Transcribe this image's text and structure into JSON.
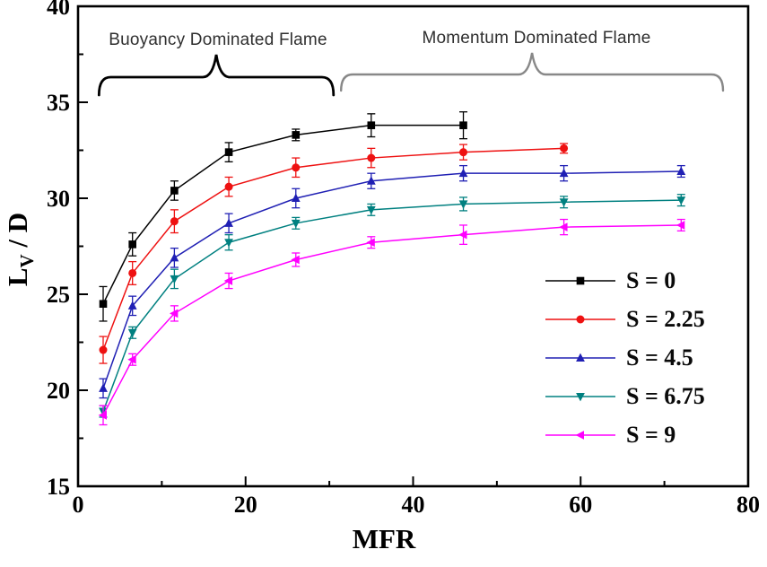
{
  "chart_data": {
    "type": "line",
    "title": "",
    "xlabel": "MFR",
    "ylabel": "L_V / D",
    "ylabel_parts": {
      "main": "L",
      "sub": "V",
      "rest": " / D"
    },
    "xlim": [
      0,
      80
    ],
    "ylim": [
      15,
      40
    ],
    "x_major_ticks": [
      0,
      20,
      40,
      60,
      80
    ],
    "x_minor_ticks": [
      10,
      30,
      50,
      70
    ],
    "y_major_ticks": [
      15,
      20,
      25,
      30,
      35,
      40
    ],
    "y_minor_ticks": [
      17.5,
      22.5,
      27.5,
      32.5,
      37.5
    ],
    "grid": false,
    "frame": "box",
    "frame_color": "#000000",
    "legend_position": "lower right",
    "series": [
      {
        "name": "S = 0",
        "color": "#000000",
        "marker": "square",
        "x": [
          3,
          6.5,
          11.5,
          18,
          26,
          35,
          46
        ],
        "y": [
          24.5,
          27.6,
          30.4,
          32.4,
          33.3,
          33.8,
          33.8
        ],
        "yerr": [
          0.9,
          0.6,
          0.5,
          0.5,
          0.3,
          0.6,
          0.7
        ]
      },
      {
        "name": "S = 2.25",
        "color": "#ee1111",
        "marker": "circle",
        "x": [
          3,
          6.5,
          11.5,
          18,
          26,
          35,
          46,
          58
        ],
        "y": [
          22.1,
          26.1,
          28.8,
          30.6,
          31.6,
          32.1,
          32.4,
          32.6
        ],
        "yerr": [
          0.7,
          0.6,
          0.6,
          0.5,
          0.5,
          0.5,
          0.4,
          0.25
        ]
      },
      {
        "name": "S = 4.5",
        "color": "#2020b4",
        "marker": "triangle-up",
        "x": [
          3,
          6.5,
          11.5,
          18,
          26,
          35,
          46,
          58,
          72
        ],
        "y": [
          20.1,
          24.4,
          26.9,
          28.7,
          30.0,
          30.9,
          31.3,
          31.3,
          31.4
        ],
        "yerr": [
          0.5,
          0.5,
          0.5,
          0.5,
          0.5,
          0.4,
          0.4,
          0.4,
          0.3
        ]
      },
      {
        "name": "S = 6.75",
        "color": "#008080",
        "marker": "triangle-down",
        "x": [
          3,
          6.5,
          11.5,
          18,
          26,
          35,
          46,
          58,
          72
        ],
        "y": [
          18.9,
          23.0,
          25.8,
          27.7,
          28.7,
          29.4,
          29.7,
          29.8,
          29.9
        ],
        "yerr": [
          0.3,
          0.3,
          0.5,
          0.4,
          0.3,
          0.3,
          0.35,
          0.3,
          0.3
        ]
      },
      {
        "name": "S = 9",
        "color": "#ff00ff",
        "marker": "triangle-left",
        "x": [
          3,
          6.5,
          11.5,
          18,
          26,
          35,
          46,
          58,
          72
        ],
        "y": [
          18.7,
          21.6,
          24.0,
          25.7,
          26.8,
          27.7,
          28.1,
          28.5,
          28.6
        ],
        "yerr": [
          0.5,
          0.3,
          0.4,
          0.4,
          0.35,
          0.3,
          0.5,
          0.4,
          0.3
        ]
      }
    ],
    "annotations": [
      {
        "text": "Buoyancy Dominated Flame",
        "brace_color": "#000000",
        "x_from": 2.5,
        "x_to": 30.5
      },
      {
        "text": "Momentum Dominated Flame",
        "brace_color": "#888888",
        "x_from": 31.4,
        "x_to": 77.0
      }
    ]
  }
}
